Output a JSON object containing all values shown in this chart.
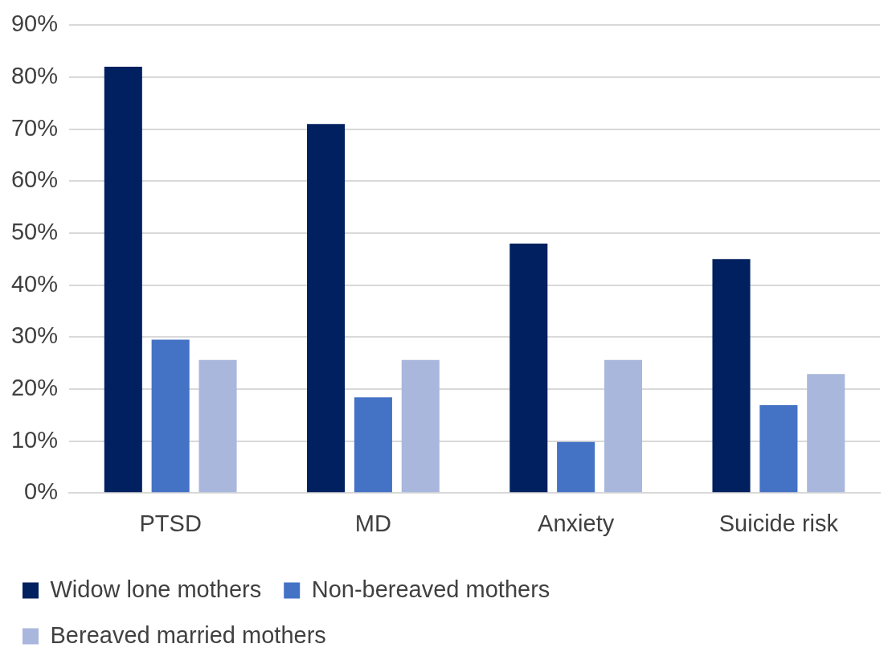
{
  "chart_data": {
    "type": "bar",
    "categories": [
      "PTSD",
      "MD",
      "Anxiety",
      "Suicide risk"
    ],
    "series": [
      {
        "name": "Widow lone mothers",
        "color": "#002060",
        "values": [
          82,
          71,
          48,
          45
        ]
      },
      {
        "name": "Non-bereaved mothers",
        "color": "#4472c4",
        "values": [
          29.5,
          18.4,
          9.8,
          16.9
        ]
      },
      {
        "name": "Bereaved married mothers",
        "color": "#a9b7dc",
        "values": [
          25.6,
          25.6,
          25.6,
          22.9
        ]
      }
    ],
    "ylim": [
      0,
      90
    ],
    "yticks": [
      {
        "value": 0,
        "label": "0%"
      },
      {
        "value": 10,
        "label": "10%"
      },
      {
        "value": 20,
        "label": "20%"
      },
      {
        "value": 30,
        "label": "30%"
      },
      {
        "value": 40,
        "label": "40%"
      },
      {
        "value": 50,
        "label": "50%"
      },
      {
        "value": 60,
        "label": "60%"
      },
      {
        "value": 70,
        "label": "70%"
      },
      {
        "value": 80,
        "label": "80%"
      },
      {
        "value": 90,
        "label": "90%"
      }
    ],
    "grid": "y",
    "legend": "bottom left"
  }
}
